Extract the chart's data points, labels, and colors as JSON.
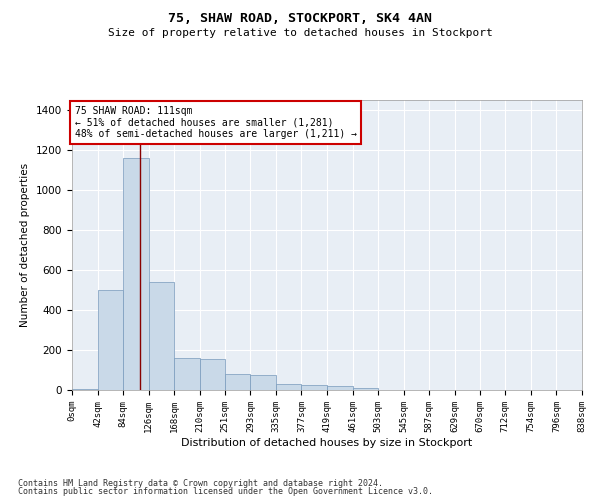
{
  "title": "75, SHAW ROAD, STOCKPORT, SK4 4AN",
  "subtitle": "Size of property relative to detached houses in Stockport",
  "xlabel": "Distribution of detached houses by size in Stockport",
  "ylabel": "Number of detached properties",
  "footer_line1": "Contains HM Land Registry data © Crown copyright and database right 2024.",
  "footer_line2": "Contains public sector information licensed under the Open Government Licence v3.0.",
  "annotation_line1": "75 SHAW ROAD: 111sqm",
  "annotation_line2": "← 51% of detached houses are smaller (1,281)",
  "annotation_line3": "48% of semi-detached houses are larger (1,211) →",
  "property_size": 111,
  "bar_color": "#c9d9e8",
  "bar_edge_color": "#7799bb",
  "ref_line_color": "#880000",
  "background_color": "#e8eef5",
  "bins": [
    0,
    42,
    84,
    126,
    168,
    210,
    251,
    293,
    335,
    377,
    419,
    461,
    503,
    545,
    587,
    629,
    670,
    712,
    754,
    796,
    838
  ],
  "bin_labels": [
    "0sqm",
    "42sqm",
    "84sqm",
    "126sqm",
    "168sqm",
    "210sqm",
    "251sqm",
    "293sqm",
    "335sqm",
    "377sqm",
    "419sqm",
    "461sqm",
    "503sqm",
    "545sqm",
    "587sqm",
    "629sqm",
    "670sqm",
    "712sqm",
    "754sqm",
    "796sqm",
    "838sqm"
  ],
  "bar_heights": [
    5,
    500,
    1160,
    540,
    160,
    155,
    80,
    75,
    30,
    25,
    18,
    12,
    0,
    0,
    0,
    0,
    0,
    0,
    0,
    0
  ],
  "ylim": [
    0,
    1450
  ],
  "yticks": [
    0,
    200,
    400,
    600,
    800,
    1000,
    1200,
    1400
  ]
}
